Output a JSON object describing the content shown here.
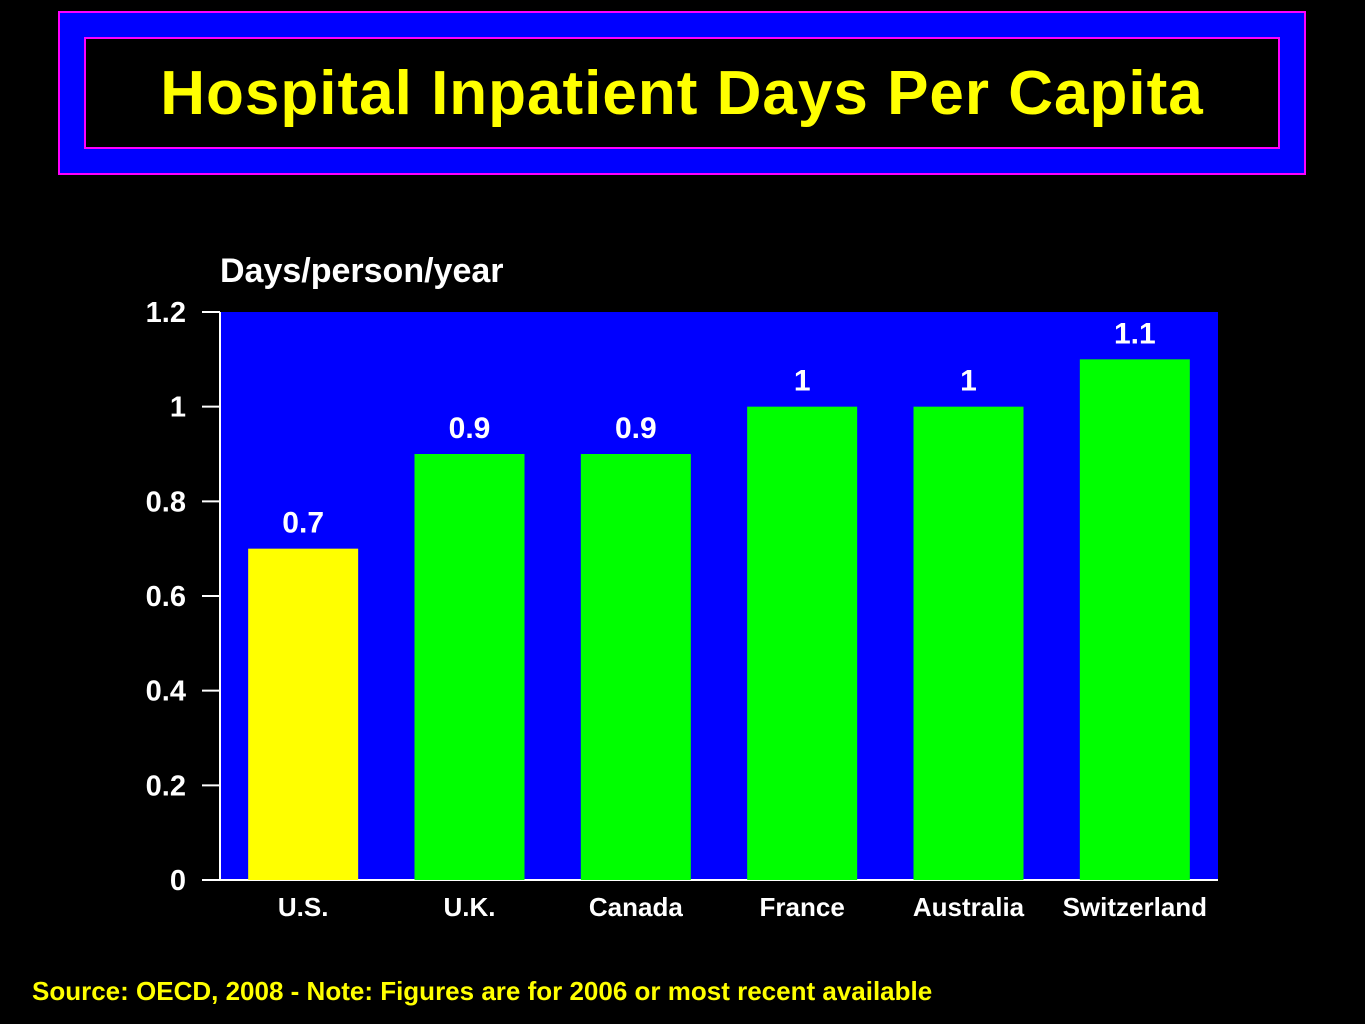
{
  "header": {
    "title": "Hospital Inpatient Days Per Capita"
  },
  "footer": {
    "source": "Source: OECD, 2008 - Note: Figures are for 2006 or most recent available"
  },
  "colors": {
    "background": "#000000",
    "title_text": "#ffff00",
    "title_frame": "#0000ff",
    "title_border": "#ff00ff",
    "plot_background": "#0000ff",
    "highlight_bar": "#ffff00",
    "bar": "#00ff00",
    "text": "#ffffff"
  },
  "chart_data": {
    "type": "bar",
    "title": "",
    "ylabel": "Days/person/year",
    "xlabel": "",
    "categories": [
      "U.S.",
      "U.K.",
      "Canada",
      "France",
      "Australia",
      "Switzerland"
    ],
    "values": [
      0.7,
      0.9,
      0.9,
      1,
      1,
      1.1
    ],
    "value_labels": [
      "0.7",
      "0.9",
      "0.9",
      "1",
      "1",
      "1.1"
    ],
    "highlight_index": 0,
    "ylim": [
      0,
      1.2
    ],
    "yticks": [
      0,
      0.2,
      0.4,
      0.6,
      0.8,
      1,
      1.2
    ],
    "ytick_labels": [
      "0",
      "0.2",
      "0.4",
      "0.6",
      "0.8",
      "1",
      "1.2"
    ],
    "grid": false,
    "legend": "none"
  }
}
